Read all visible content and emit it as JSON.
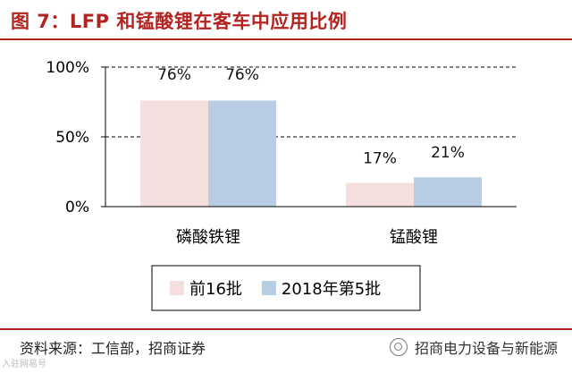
{
  "header": {
    "title": "图 7：LFP 和锰酸锂在客车中应用比例"
  },
  "footer": {
    "source": "资料来源：工信部，招商证券",
    "watermark_right": "招商电力设备与新能源",
    "watermark_left": "入驻网易号"
  },
  "chart_data": {
    "type": "bar",
    "categories": [
      "磷酸铁锂",
      "锰酸锂"
    ],
    "series": [
      {
        "name": "前16批",
        "values": [
          76,
          17
        ],
        "labels": [
          "76%",
          "17%"
        ],
        "color": "#f4dede"
      },
      {
        "name": "2018年第5批",
        "values": [
          76,
          21
        ],
        "labels": [
          "76%",
          "21%"
        ],
        "color": "#b8cde3"
      }
    ],
    "ylim": [
      0,
      100
    ],
    "yticks": [
      0,
      50,
      100
    ],
    "ytick_labels": [
      "0%",
      "50%",
      "100%"
    ],
    "grid": "dashed at 50% and 100%",
    "legend": "bottom, boxed"
  }
}
